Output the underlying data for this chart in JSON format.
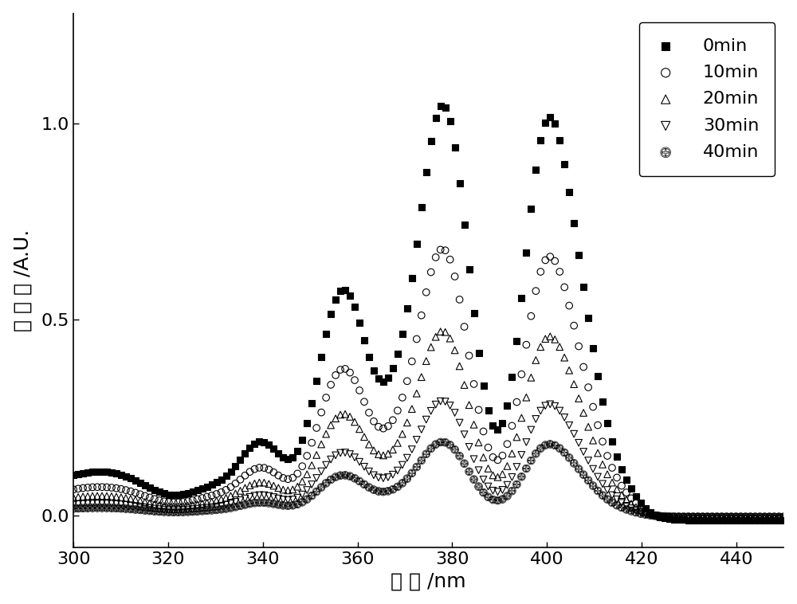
{
  "title": "",
  "xlabel": "波 长 /nm",
  "ylabel": "吸 光 度 /A.U.",
  "xlim": [
    300,
    450
  ],
  "ylim": [
    -0.08,
    1.28
  ],
  "xticks": [
    300,
    320,
    340,
    360,
    380,
    400,
    420,
    440
  ],
  "yticks": [
    0.0,
    0.5,
    1.0
  ],
  "labels": [
    "0min",
    "10min",
    "20min",
    "30min",
    "40min"
  ],
  "scale_factors": [
    1.0,
    0.65,
    0.45,
    0.28,
    0.18
  ],
  "background_color": "#ffffff",
  "legend_fontsize": 16,
  "axis_fontsize": 18,
  "tick_fontsize": 16,
  "n_points": 150
}
